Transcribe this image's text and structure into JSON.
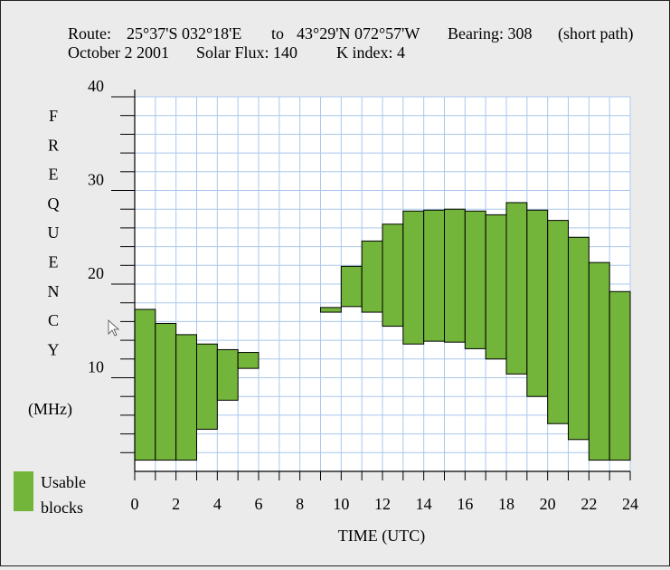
{
  "header": {
    "line1": {
      "route_label": "Route:",
      "from": "25°37'S 032°18'E",
      "to_word": "to",
      "to": "43°29'N 072°57'W",
      "bearing": "Bearing: 308",
      "path": "(short path)"
    },
    "line2": {
      "date": "October 2 2001",
      "solar_flux": "Solar Flux: 140",
      "k_index": "K index: 4"
    }
  },
  "legend": {
    "line1": "Usable",
    "line2": "blocks",
    "color": "#73b53a"
  },
  "chart_data": {
    "type": "bar",
    "xlabel": "TIME (UTC)",
    "ylabel_letters": [
      "F",
      "R",
      "E",
      "Q",
      "U",
      "E",
      "N",
      "C",
      "Y"
    ],
    "ylabel_unit": "(MHz)",
    "xlim": [
      0,
      24
    ],
    "ylim": [
      0,
      40
    ],
    "x_ticks": [
      "0",
      "2",
      "4",
      "6",
      "8",
      "10",
      "12",
      "14",
      "16",
      "18",
      "20",
      "22",
      "24"
    ],
    "y_ticks": [
      "10",
      "20",
      "30",
      "40"
    ],
    "grid": true,
    "colors": {
      "bar": "#73b53a",
      "grid": "#a9c8ec",
      "axis": "#000000"
    },
    "blocks": [
      {
        "start": 0,
        "end": 1,
        "low": 1.2,
        "high": 17.3
      },
      {
        "start": 1,
        "end": 2,
        "low": 1.2,
        "high": 15.8
      },
      {
        "start": 2,
        "end": 3,
        "low": 1.2,
        "high": 14.6
      },
      {
        "start": 3,
        "end": 4,
        "low": 4.5,
        "high": 13.6
      },
      {
        "start": 4,
        "end": 5,
        "low": 7.6,
        "high": 13.0
      },
      {
        "start": 5,
        "end": 6,
        "low": 11.0,
        "high": 12.7
      },
      {
        "start": 9,
        "end": 10,
        "low": 17.0,
        "high": 17.5
      },
      {
        "start": 10,
        "end": 11,
        "low": 17.6,
        "high": 21.9
      },
      {
        "start": 11,
        "end": 12,
        "low": 17.0,
        "high": 24.6
      },
      {
        "start": 12,
        "end": 13,
        "low": 15.5,
        "high": 26.4
      },
      {
        "start": 13,
        "end": 14,
        "low": 13.6,
        "high": 27.8
      },
      {
        "start": 14,
        "end": 15,
        "low": 13.9,
        "high": 27.9
      },
      {
        "start": 15,
        "end": 16,
        "low": 13.8,
        "high": 28.0
      },
      {
        "start": 16,
        "end": 17,
        "low": 13.1,
        "high": 27.8
      },
      {
        "start": 17,
        "end": 18,
        "low": 12.0,
        "high": 27.4
      },
      {
        "start": 18,
        "end": 19,
        "low": 10.4,
        "high": 28.7
      },
      {
        "start": 19,
        "end": 20,
        "low": 8.0,
        "high": 27.9
      },
      {
        "start": 20,
        "end": 21,
        "low": 5.1,
        "high": 26.8
      },
      {
        "start": 21,
        "end": 22,
        "low": 3.4,
        "high": 25.0
      },
      {
        "start": 22,
        "end": 23,
        "low": 1.2,
        "high": 22.3
      },
      {
        "start": 23,
        "end": 24,
        "low": 1.2,
        "high": 19.2
      }
    ]
  }
}
